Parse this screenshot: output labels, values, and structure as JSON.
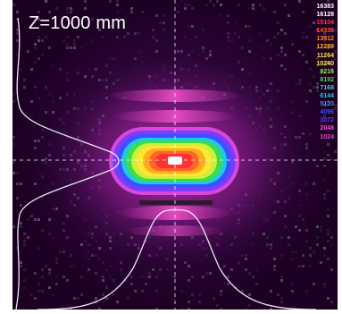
{
  "label": "Z=1000 mm",
  "scale_levels": [
    {
      "value": "16383",
      "color": "#ffffff"
    },
    {
      "value": "16128",
      "color": "#ffffff"
    },
    {
      "value": "15104",
      "color": "#ff3c3c"
    },
    {
      "value": "14336",
      "color": "#ff5a32"
    },
    {
      "value": "13312",
      "color": "#ff8a1e"
    },
    {
      "value": "12288",
      "color": "#ffb21e"
    },
    {
      "value": "11264",
      "color": "#ffe632"
    },
    {
      "value": "10240",
      "color": "#fff04a"
    },
    {
      "value": "9216",
      "color": "#8cf03c"
    },
    {
      "value": "8192",
      "color": "#3cdc4a"
    },
    {
      "value": "7168",
      "color": "#30d2a8"
    },
    {
      "value": "6144",
      "color": "#1ec8e6"
    },
    {
      "value": "5120",
      "color": "#2896ff"
    },
    {
      "value": "4096",
      "color": "#3c50ff"
    },
    {
      "value": "3072",
      "color": "#5a3cff"
    },
    {
      "value": "2048",
      "color": "#ff46dc"
    },
    {
      "value": "1024",
      "color": "#e646c8"
    }
  ]
}
